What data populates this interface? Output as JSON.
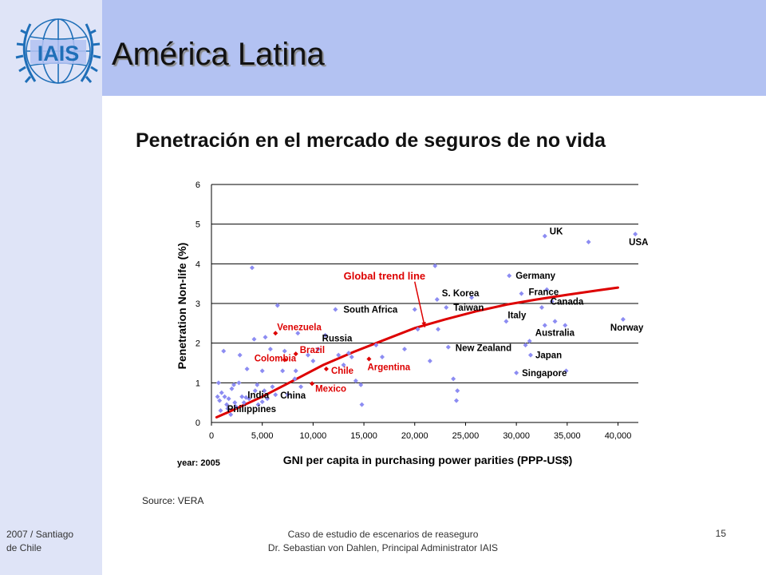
{
  "slide": {
    "title": "América Latina",
    "logo_text": "IAIS",
    "source": "Source: VERA",
    "footer_left_line1": "2007 / Santiago",
    "footer_left_line2": "de Chile",
    "footer_center_line1": "Caso de estudio de escenarios de reaseguro",
    "footer_center_line2": "Dr. Sebastian von Dahlen, Principal Administrator IAIS",
    "page_number": "15"
  },
  "colors": {
    "left_band": "#dfe4f7",
    "top_band": "#b3c2f2",
    "logo_blue": "#1f6fb8",
    "points": "#8c8cf2",
    "highlight": "#dd0000",
    "trend": "#dd0000"
  },
  "chart_data": {
    "type": "scatter",
    "title": "Penetración en el mercado de seguros de no vida",
    "xlabel": "GNI per capita in purchasing power parities (PPP-US$)",
    "ylabel": "Penetration Non-life (%)",
    "year_note": "year: 2005",
    "trend_label": "Global trend line",
    "xlim": [
      0,
      42000
    ],
    "ylim": [
      0,
      6
    ],
    "x_ticks": [
      0,
      5000,
      10000,
      15000,
      20000,
      25000,
      30000,
      35000,
      40000
    ],
    "x_tick_labels": [
      "0",
      "5,000",
      "10,000",
      "15,000",
      "20,000",
      "25,000",
      "30,000",
      "35,000",
      "40,000"
    ],
    "y_ticks": [
      0,
      1,
      2,
      3,
      4,
      5,
      6
    ],
    "y_tick_labels": [
      "0",
      "1",
      "2",
      "3",
      "4",
      "5",
      "6"
    ],
    "grid": "horizontal",
    "trend_line": {
      "x": [
        500,
        2000,
        5000,
        8000,
        11000,
        14000,
        17000,
        20000,
        23000,
        26000,
        29000,
        32000,
        35000,
        38000,
        40000
      ],
      "y": [
        0.13,
        0.3,
        0.65,
        1.05,
        1.45,
        1.78,
        2.08,
        2.38,
        2.6,
        2.8,
        2.97,
        3.1,
        3.22,
        3.33,
        3.4
      ]
    },
    "labeled_points": [
      {
        "name": "UK",
        "x": 32800,
        "y": 4.7,
        "color": "blue"
      },
      {
        "name": "USA",
        "x": 41700,
        "y": 4.75,
        "color": "blue"
      },
      {
        "name": "Germany",
        "x": 29300,
        "y": 3.7,
        "color": "blue"
      },
      {
        "name": "France",
        "x": 30500,
        "y": 3.25,
        "color": "blue"
      },
      {
        "name": "Canada",
        "x": 33500,
        "y": 3.05,
        "color": "blue"
      },
      {
        "name": "S. Korea",
        "x": 22200,
        "y": 3.1,
        "color": "blue"
      },
      {
        "name": "Taiwan",
        "x": 23100,
        "y": 2.9,
        "color": "blue"
      },
      {
        "name": "Italy",
        "x": 29000,
        "y": 2.55,
        "color": "blue"
      },
      {
        "name": "Australia",
        "x": 32800,
        "y": 2.45,
        "color": "blue"
      },
      {
        "name": "Norway",
        "x": 40500,
        "y": 2.6,
        "color": "blue"
      },
      {
        "name": "South Africa",
        "x": 12200,
        "y": 2.85,
        "color": "blue"
      },
      {
        "name": "Russia",
        "x": 11200,
        "y": 2.2,
        "color": "blue"
      },
      {
        "name": "New Zealand",
        "x": 23300,
        "y": 1.9,
        "color": "blue"
      },
      {
        "name": "Japan",
        "x": 31400,
        "y": 1.7,
        "color": "blue"
      },
      {
        "name": "Singapore",
        "x": 30000,
        "y": 1.25,
        "color": "blue"
      },
      {
        "name": "India",
        "x": 3400,
        "y": 0.63,
        "color": "blue"
      },
      {
        "name": "China",
        "x": 6300,
        "y": 0.7,
        "color": "blue"
      },
      {
        "name": "Philippines",
        "x": 5000,
        "y": 0.52,
        "color": "blue"
      },
      {
        "name": "Venezuela",
        "x": 6300,
        "y": 2.25,
        "color": "red"
      },
      {
        "name": "Brazil",
        "x": 8300,
        "y": 1.73,
        "color": "red"
      },
      {
        "name": "Colombia",
        "x": 7200,
        "y": 1.58,
        "color": "red"
      },
      {
        "name": "Chile",
        "x": 11300,
        "y": 1.35,
        "color": "red"
      },
      {
        "name": "Argentina",
        "x": 15500,
        "y": 1.6,
        "color": "red"
      },
      {
        "name": "Mexico",
        "x": 9900,
        "y": 0.98,
        "color": "red"
      }
    ],
    "other_points": [
      [
        600,
        0.65
      ],
      [
        700,
        1.0
      ],
      [
        800,
        0.55
      ],
      [
        900,
        0.3
      ],
      [
        1000,
        0.75
      ],
      [
        1200,
        1.8
      ],
      [
        1300,
        0.65
      ],
      [
        1500,
        0.45
      ],
      [
        1600,
        0.35
      ],
      [
        1700,
        0.6
      ],
      [
        1900,
        0.2
      ],
      [
        2000,
        0.85
      ],
      [
        2200,
        0.95
      ],
      [
        2300,
        0.5
      ],
      [
        2400,
        0.4
      ],
      [
        2700,
        1.0
      ],
      [
        2800,
        1.7
      ],
      [
        3000,
        0.65
      ],
      [
        3200,
        0.5
      ],
      [
        3500,
        1.35
      ],
      [
        3700,
        0.6
      ],
      [
        4000,
        3.9
      ],
      [
        4200,
        2.1
      ],
      [
        4300,
        0.8
      ],
      [
        4500,
        0.95
      ],
      [
        4600,
        0.45
      ],
      [
        5000,
        1.3
      ],
      [
        5200,
        0.8
      ],
      [
        5300,
        2.15
      ],
      [
        5500,
        0.6
      ],
      [
        5800,
        1.85
      ],
      [
        6000,
        0.9
      ],
      [
        6500,
        2.95
      ],
      [
        7000,
        1.3
      ],
      [
        7200,
        1.8
      ],
      [
        7500,
        0.7
      ],
      [
        8200,
        1.1
      ],
      [
        8300,
        1.3
      ],
      [
        8500,
        2.25
      ],
      [
        8800,
        0.9
      ],
      [
        9500,
        1.7
      ],
      [
        10000,
        1.55
      ],
      [
        10500,
        1.85
      ],
      [
        12500,
        1.7
      ],
      [
        13000,
        1.45
      ],
      [
        13500,
        1.75
      ],
      [
        13800,
        1.65
      ],
      [
        14200,
        1.05
      ],
      [
        14700,
        0.95
      ],
      [
        14800,
        0.45
      ],
      [
        16200,
        1.95
      ],
      [
        16800,
        1.65
      ],
      [
        19000,
        1.85
      ],
      [
        20000,
        2.85
      ],
      [
        20300,
        2.35
      ],
      [
        21500,
        1.55
      ],
      [
        22000,
        3.95
      ],
      [
        22300,
        2.35
      ],
      [
        23800,
        1.1
      ],
      [
        24100,
        0.55
      ],
      [
        24200,
        0.8
      ],
      [
        25600,
        3.15
      ],
      [
        30900,
        1.95
      ],
      [
        31300,
        2.05
      ],
      [
        32500,
        2.9
      ],
      [
        33000,
        3.35
      ],
      [
        33800,
        2.55
      ],
      [
        34800,
        2.45
      ],
      [
        34900,
        1.3
      ],
      [
        37100,
        4.55
      ]
    ],
    "trend_arrow": {
      "from": [
        20000,
        3.55
      ],
      "to": [
        21000,
        2.4
      ]
    }
  }
}
